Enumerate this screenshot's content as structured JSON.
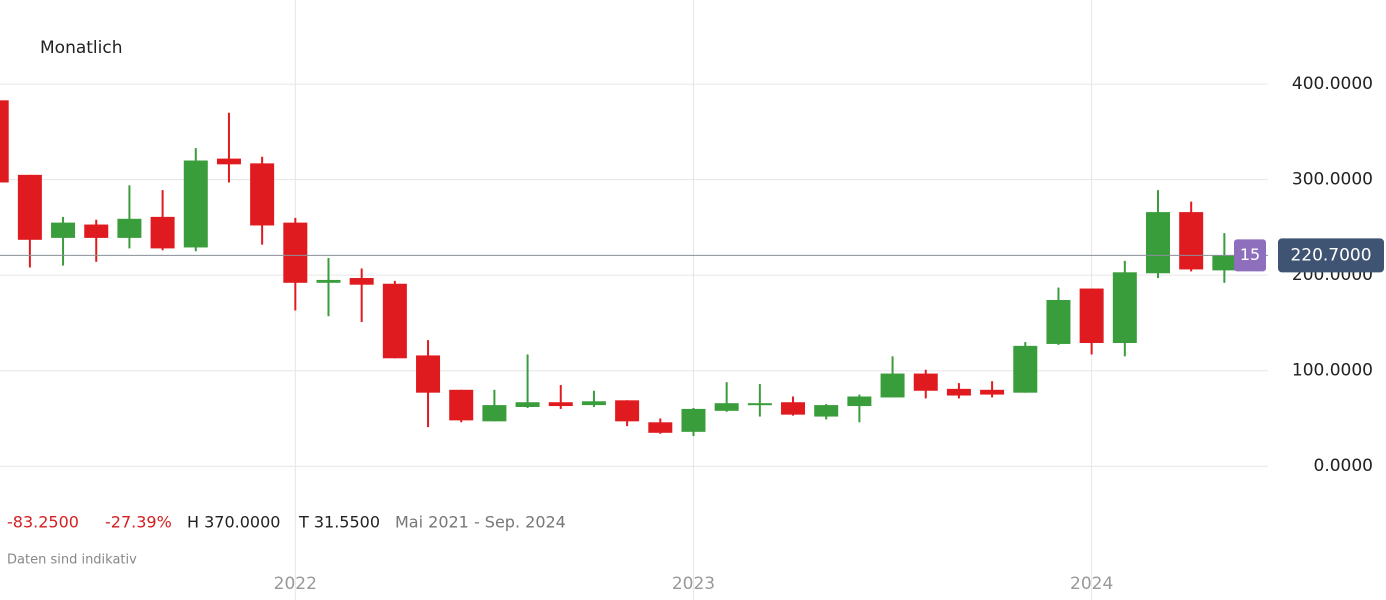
{
  "chart_data": {
    "type": "candlestick",
    "title": "Monatlich",
    "categories": [
      null,
      null,
      null,
      null,
      null,
      null,
      null,
      null,
      null,
      "2022",
      null,
      null,
      null,
      null,
      null,
      null,
      null,
      null,
      null,
      null,
      null,
      "2023",
      null,
      null,
      null,
      null,
      null,
      null,
      null,
      null,
      null,
      null,
      null,
      "2024",
      null,
      null,
      null,
      null
    ],
    "series": [
      {
        "up_color": "#3a9d3c",
        "down_color": "#e01b1f",
        "open": [
          383,
          305,
          239,
          253,
          239,
          261,
          229,
          322,
          317,
          255,
          192,
          197,
          191,
          116,
          80,
          47,
          62,
          67,
          64,
          69,
          46,
          36,
          58,
          64,
          67,
          52,
          63,
          72,
          97,
          81,
          80,
          77,
          128,
          186,
          129,
          202,
          266,
          205
        ],
        "high": [
          385,
          305,
          261,
          258,
          294,
          289,
          333,
          370,
          324,
          260,
          218,
          207,
          194,
          132,
          80,
          80,
          117,
          85,
          79,
          69,
          50,
          61,
          88,
          86,
          73,
          65,
          75,
          115,
          101,
          87,
          89,
          130,
          187,
          186,
          215,
          289,
          277,
          244
        ],
        "low": [
          297,
          208,
          210,
          214,
          228,
          226,
          225,
          297,
          232,
          163,
          157,
          151,
          113,
          41,
          46,
          47,
          61,
          60,
          62,
          42,
          34,
          31.55,
          57,
          52,
          53,
          49,
          46,
          72,
          71,
          71,
          72,
          77,
          127,
          117,
          115,
          197,
          204,
          192
        ],
        "close": [
          297,
          237,
          255,
          239,
          259,
          228,
          320,
          316,
          252,
          192,
          195,
          190,
          113,
          77,
          48,
          64,
          67,
          63,
          68,
          47,
          35,
          60,
          66,
          66,
          54,
          64,
          73,
          97,
          79,
          74,
          75,
          126,
          174,
          129,
          203,
          266,
          206,
          221
        ]
      }
    ],
    "ylim": [
      -140,
      488
    ],
    "yticks": [
      {
        "value": 0,
        "label": "0.0000"
      },
      {
        "value": 100,
        "label": "100.0000"
      },
      {
        "value": 200,
        "label": "200.0000"
      },
      {
        "value": 300,
        "label": "300.0000"
      },
      {
        "value": 400,
        "label": "400.0000"
      }
    ],
    "grid": true,
    "last_price": {
      "value": 220.7,
      "label": "220.7000"
    },
    "countdown": "15",
    "stats": [
      {
        "value": -83.25,
        "label": "-83.2500",
        "color": "#d42020"
      },
      {
        "value": -27.39,
        "label": "-27.39%",
        "color": "#d42020"
      },
      {
        "value": 370,
        "label": "H 370.0000",
        "color": "#222222"
      },
      {
        "value": 31.55,
        "label": "T 31.5500",
        "color": "#222222"
      }
    ],
    "period": "Mai 2021 - Sep. 2024",
    "note": "Daten sind indikativ"
  }
}
